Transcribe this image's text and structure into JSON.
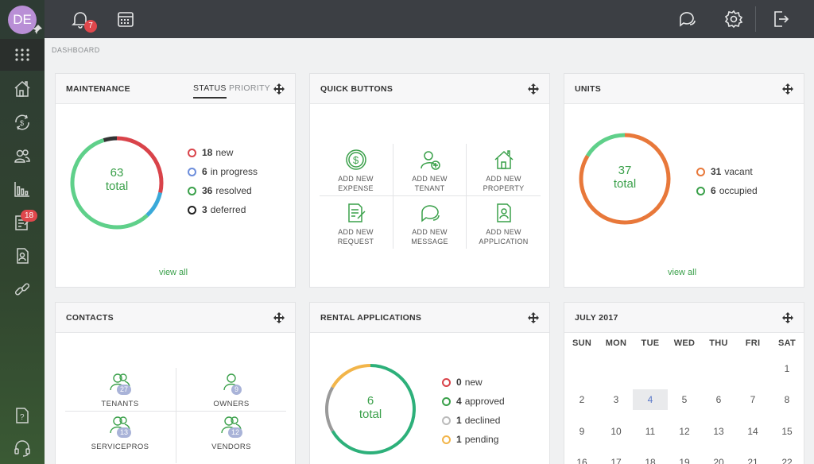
{
  "user": {
    "initials": "DE"
  },
  "topbar": {
    "notifications_count": "7"
  },
  "sidebar": {
    "badge_count": "18"
  },
  "breadcrumb": "DASHBOARD",
  "maintenance": {
    "title": "MAINTENANCE",
    "tabs": [
      "STATUS",
      "PRIORITY"
    ],
    "total": "63",
    "total_label": "total",
    "legend": [
      {
        "count": "18",
        "label": "new",
        "color": "#d9434a"
      },
      {
        "count": "6",
        "label": "in progress",
        "color": "#6c8ddb"
      },
      {
        "count": "36",
        "label": "resolved",
        "color": "#3aa04a"
      },
      {
        "count": "3",
        "label": "deferred",
        "color": "#222222"
      }
    ],
    "slices": [
      18,
      6,
      36,
      3
    ],
    "slice_colors": [
      "#d9434a",
      "#3aa9d9",
      "#5fd08a",
      "#333333"
    ],
    "view_all": "view all"
  },
  "quick_buttons": {
    "title": "QUICK BUTTONS",
    "items": [
      {
        "line1": "ADD NEW",
        "line2": "EXPENSE",
        "icon": "dollar-icon"
      },
      {
        "line1": "ADD NEW",
        "line2": "TENANT",
        "icon": "add-user-icon"
      },
      {
        "line1": "ADD NEW",
        "line2": "PROPERTY",
        "icon": "house-icon"
      },
      {
        "line1": "ADD NEW",
        "line2": "REQUEST",
        "icon": "request-icon"
      },
      {
        "line1": "ADD NEW",
        "line2": "MESSAGE",
        "icon": "message-icon"
      },
      {
        "line1": "ADD NEW",
        "line2": "APPLICATION",
        "icon": "application-icon"
      }
    ]
  },
  "units": {
    "title": "UNITS",
    "total": "37",
    "total_label": "total",
    "legend": [
      {
        "count": "31",
        "label": "vacant",
        "color": "#e8783a"
      },
      {
        "count": "6",
        "label": "occupied",
        "color": "#3aa04a"
      }
    ],
    "slices": [
      31,
      6
    ],
    "slice_colors": [
      "#e8783a",
      "#5fd08a"
    ],
    "view_all": "view all"
  },
  "contacts": {
    "title": "CONTACTS",
    "items": [
      {
        "label": "TENANTS",
        "count": "27",
        "icon": "tenants-icon"
      },
      {
        "label": "OWNERS",
        "count": "9",
        "icon": "owners-icon"
      },
      {
        "label": "SERVICEPROS",
        "count": "13",
        "icon": "servicepros-icon"
      },
      {
        "label": "VENDORS",
        "count": "12",
        "icon": "vendors-icon"
      }
    ]
  },
  "rental_applications": {
    "title": "RENTAL APPLICATIONS",
    "total": "6",
    "total_label": "total",
    "legend": [
      {
        "count": "0",
        "label": "new",
        "color": "#d9434a"
      },
      {
        "count": "4",
        "label": "approved",
        "color": "#3aa04a"
      },
      {
        "count": "1",
        "label": "declined",
        "color": "#bbbbbb"
      },
      {
        "count": "1",
        "label": "pending",
        "color": "#f2b54a"
      }
    ],
    "slices": [
      4,
      1,
      1
    ],
    "slice_colors": [
      "#2db07a",
      "#9a9a9a",
      "#f2b54a"
    ]
  },
  "calendar": {
    "title": "JULY 2017",
    "weekdays": [
      "SUN",
      "MON",
      "TUE",
      "WED",
      "THU",
      "FRI",
      "SAT"
    ],
    "weeks": [
      [
        "",
        "",
        "",
        "",
        "",
        "",
        "1"
      ],
      [
        "2",
        "3",
        "4",
        "5",
        "6",
        "7",
        "8"
      ],
      [
        "9",
        "10",
        "11",
        "12",
        "13",
        "14",
        "15"
      ],
      [
        "16",
        "17",
        "18",
        "19",
        "20",
        "21",
        "22"
      ]
    ],
    "today": "4"
  }
}
